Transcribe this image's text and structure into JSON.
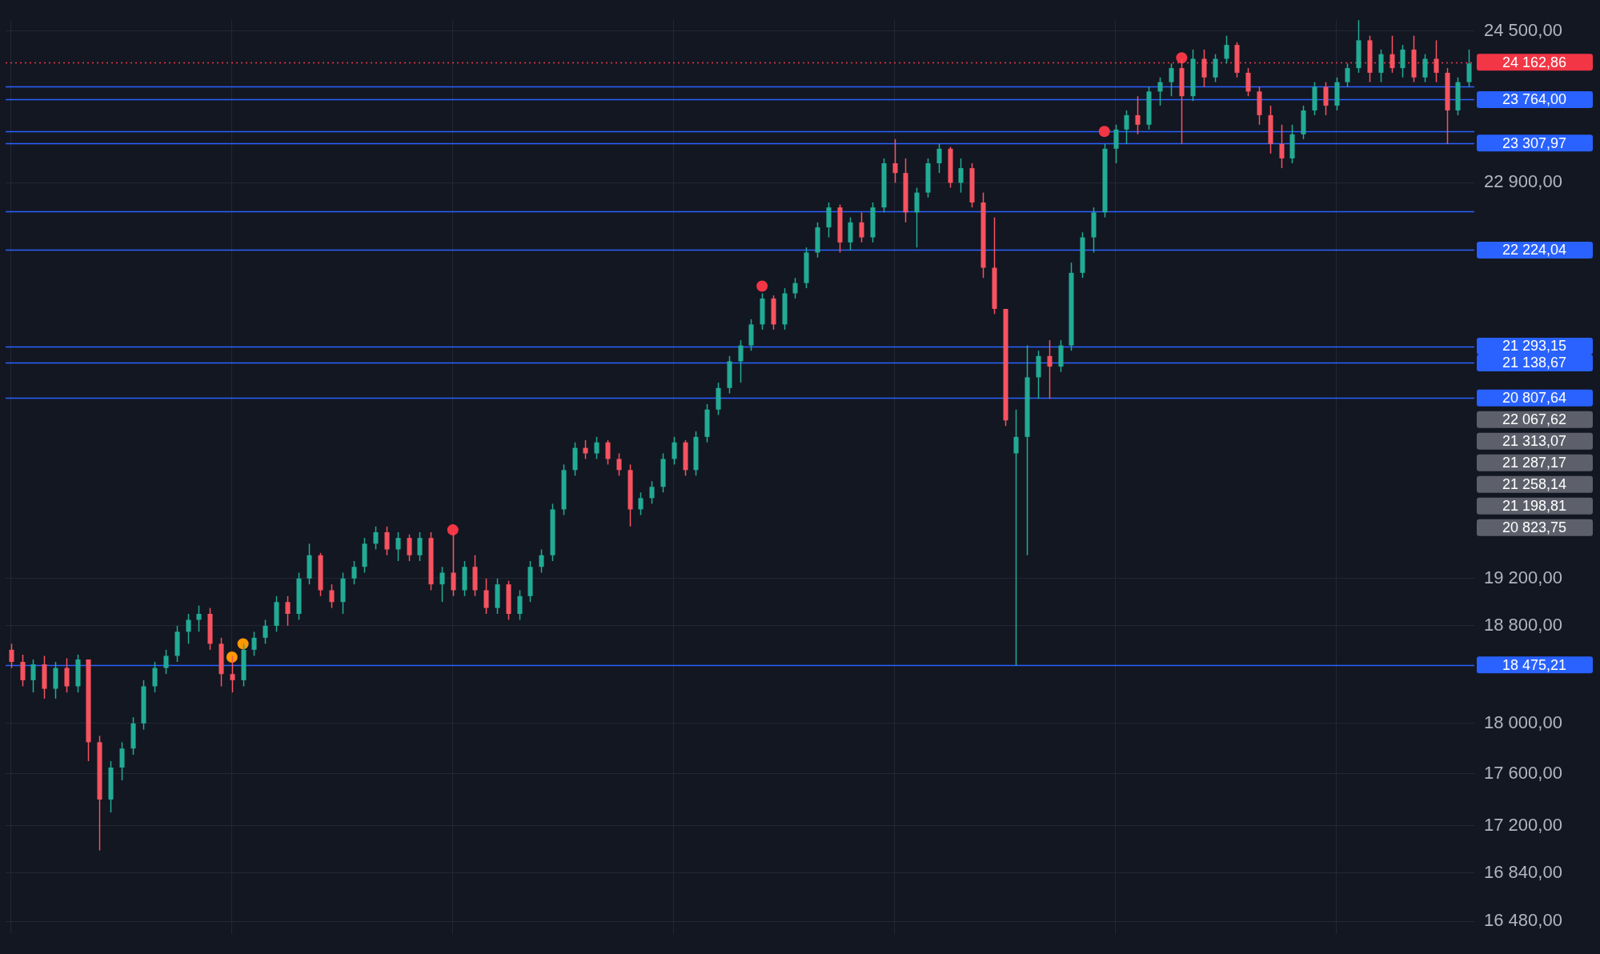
{
  "chart_data": {
    "type": "candlestick",
    "log": true,
    "grid": true,
    "tick_labels": "y",
    "marker": "circle",
    "categories": [
      null,
      null,
      null,
      null,
      null,
      null,
      null,
      null,
      null,
      null,
      null,
      null,
      null,
      null,
      null,
      null,
      null,
      null,
      null,
      null,
      null,
      null,
      null,
      null,
      null,
      null,
      null,
      null,
      null,
      null,
      null,
      null,
      null,
      null,
      null,
      null,
      null,
      null,
      null,
      null,
      null,
      null,
      null,
      null,
      null,
      null,
      null,
      null,
      null,
      null,
      null,
      null,
      null,
      null,
      null,
      null,
      null,
      null,
      null,
      null,
      null,
      null,
      null,
      null,
      null,
      null,
      null,
      null,
      null,
      null,
      null,
      null,
      null,
      null,
      null,
      null,
      null,
      null,
      null,
      null,
      null,
      null,
      null,
      null,
      null,
      null,
      null,
      null,
      null,
      null,
      null,
      null,
      null,
      null,
      null,
      null,
      null,
      null,
      null,
      null,
      null,
      null,
      null,
      null,
      null,
      null,
      null,
      null,
      null,
      null,
      null,
      null,
      null,
      null,
      null,
      null,
      null,
      null,
      null,
      null,
      null,
      null,
      null,
      null,
      null,
      null,
      null,
      null,
      null,
      null,
      null,
      null,
      null
    ],
    "ohlc": [
      [
        18600,
        18650,
        18450,
        18500
      ],
      [
        18500,
        18560,
        18300,
        18350
      ],
      [
        18350,
        18520,
        18250,
        18480
      ],
      [
        18480,
        18550,
        18200,
        18280
      ],
      [
        18280,
        18500,
        18200,
        18450
      ],
      [
        18450,
        18530,
        18250,
        18300
      ],
      [
        18300,
        18560,
        18250,
        18520
      ],
      [
        18520,
        18520,
        17700,
        17850
      ],
      [
        17850,
        17900,
        17010,
        17400
      ],
      [
        17400,
        17700,
        17300,
        17650
      ],
      [
        17650,
        17850,
        17550,
        17800
      ],
      [
        17800,
        18050,
        17750,
        18000
      ],
      [
        18000,
        18350,
        17950,
        18300
      ],
      [
        18300,
        18500,
        18250,
        18450
      ],
      [
        18450,
        18600,
        18400,
        18550
      ],
      [
        18550,
        18800,
        18500,
        18750
      ],
      [
        18750,
        18900,
        18650,
        18850
      ],
      [
        18850,
        18970,
        18750,
        18900
      ],
      [
        18900,
        18950,
        18600,
        18650
      ],
      [
        18650,
        18700,
        18300,
        18400
      ],
      [
        18400,
        18550,
        18250,
        18350
      ],
      [
        18350,
        18650,
        18300,
        18600
      ],
      [
        18600,
        18750,
        18550,
        18700
      ],
      [
        18700,
        18850,
        18650,
        18800
      ],
      [
        18800,
        19050,
        18750,
        19000
      ],
      [
        19000,
        19050,
        18800,
        18900
      ],
      [
        18900,
        19250,
        18850,
        19200
      ],
      [
        19200,
        19500,
        19150,
        19400
      ],
      [
        19400,
        19420,
        19050,
        19100
      ],
      [
        19100,
        19150,
        18950,
        19000
      ],
      [
        19000,
        19250,
        18900,
        19200
      ],
      [
        19200,
        19350,
        19150,
        19300
      ],
      [
        19300,
        19550,
        19250,
        19500
      ],
      [
        19500,
        19650,
        19450,
        19600
      ],
      [
        19600,
        19650,
        19400,
        19450
      ],
      [
        19450,
        19600,
        19350,
        19550
      ],
      [
        19550,
        19580,
        19350,
        19400
      ],
      [
        19400,
        19600,
        19350,
        19550
      ],
      [
        19550,
        19600,
        19100,
        19150
      ],
      [
        19150,
        19300,
        19000,
        19250
      ],
      [
        19250,
        19600,
        19050,
        19100
      ],
      [
        19100,
        19350,
        19050,
        19300
      ],
      [
        19300,
        19400,
        19050,
        19100
      ],
      [
        19100,
        19200,
        18900,
        18950
      ],
      [
        18950,
        19200,
        18900,
        19150
      ],
      [
        19150,
        19180,
        18850,
        18900
      ],
      [
        18900,
        19100,
        18850,
        19050
      ],
      [
        19050,
        19350,
        19000,
        19300
      ],
      [
        19300,
        19450,
        19250,
        19400
      ],
      [
        19400,
        19850,
        19350,
        19800
      ],
      [
        19800,
        20200,
        19750,
        20150
      ],
      [
        20150,
        20400,
        20100,
        20350
      ],
      [
        20350,
        20420,
        20250,
        20300
      ],
      [
        20300,
        20450,
        20250,
        20400
      ],
      [
        20400,
        20420,
        20200,
        20250
      ],
      [
        20250,
        20300,
        20100,
        20150
      ],
      [
        20150,
        20200,
        19650,
        19800
      ],
      [
        19800,
        19950,
        19750,
        19900
      ],
      [
        19900,
        20050,
        19850,
        20000
      ],
      [
        20000,
        20300,
        19950,
        20250
      ],
      [
        20250,
        20450,
        20200,
        20400
      ],
      [
        20400,
        20420,
        20100,
        20150
      ],
      [
        20150,
        20500,
        20100,
        20450
      ],
      [
        20450,
        20750,
        20400,
        20700
      ],
      [
        20700,
        20950,
        20650,
        20900
      ],
      [
        20900,
        21200,
        20850,
        21150
      ],
      [
        21150,
        21350,
        20950,
        21300
      ],
      [
        21300,
        21550,
        21250,
        21500
      ],
      [
        21500,
        21800,
        21450,
        21750
      ],
      [
        21750,
        21780,
        21450,
        21500
      ],
      [
        21500,
        21850,
        21450,
        21800
      ],
      [
        21800,
        21950,
        21750,
        21900
      ],
      [
        21900,
        22250,
        21850,
        22200
      ],
      [
        22200,
        22500,
        22150,
        22450
      ],
      [
        22450,
        22700,
        22350,
        22650
      ],
      [
        22650,
        22680,
        22200,
        22300
      ],
      [
        22300,
        22550,
        22220,
        22500
      ],
      [
        22500,
        22600,
        22300,
        22350
      ],
      [
        22350,
        22700,
        22300,
        22650
      ],
      [
        22650,
        23150,
        22600,
        23100
      ],
      [
        23100,
        23350,
        22900,
        23000
      ],
      [
        23000,
        23150,
        22500,
        22600
      ],
      [
        22600,
        22850,
        22250,
        22800
      ],
      [
        22800,
        23150,
        22750,
        23100
      ],
      [
        23100,
        23300,
        23000,
        23250
      ],
      [
        23250,
        23270,
        22850,
        22900
      ],
      [
        22900,
        23150,
        22800,
        23050
      ],
      [
        23050,
        23100,
        22650,
        22700
      ],
      [
        22700,
        22800,
        21950,
        22050
      ],
      [
        22050,
        22550,
        21600,
        21650
      ],
      [
        21650,
        21650,
        20550,
        20600
      ],
      [
        20300,
        20700,
        18470,
        20450
      ],
      [
        20450,
        21300,
        19400,
        21000
      ],
      [
        21000,
        21250,
        20800,
        21200
      ],
      [
        21200,
        21350,
        20800,
        21100
      ],
      [
        21100,
        21350,
        21050,
        21300
      ],
      [
        21300,
        22100,
        21250,
        22000
      ],
      [
        22000,
        22400,
        21950,
        22350
      ],
      [
        22350,
        22650,
        22200,
        22600
      ],
      [
        22600,
        23300,
        22550,
        23250
      ],
      [
        23250,
        23500,
        23100,
        23450
      ],
      [
        23450,
        23650,
        23300,
        23600
      ],
      [
        23600,
        23800,
        23400,
        23500
      ],
      [
        23500,
        23900,
        23450,
        23850
      ],
      [
        23850,
        24000,
        23700,
        23950
      ],
      [
        23950,
        24150,
        23800,
        24100
      ],
      [
        24100,
        24200,
        23300,
        23800
      ],
      [
        23800,
        24300,
        23750,
        24200
      ],
      [
        24200,
        24300,
        23900,
        24000
      ],
      [
        24000,
        24250,
        23950,
        24200
      ],
      [
        24200,
        24450,
        24150,
        24350
      ],
      [
        24350,
        24380,
        24000,
        24050
      ],
      [
        24050,
        24100,
        23800,
        23850
      ],
      [
        23850,
        23900,
        23500,
        23600
      ],
      [
        23600,
        23700,
        23200,
        23300
      ],
      [
        23300,
        23500,
        23050,
        23150
      ],
      [
        23150,
        23500,
        23100,
        23400
      ],
      [
        23400,
        23700,
        23350,
        23650
      ],
      [
        23650,
        23950,
        23600,
        23900
      ],
      [
        23900,
        23950,
        23600,
        23700
      ],
      [
        23700,
        24000,
        23650,
        23950
      ],
      [
        23950,
        24150,
        23900,
        24100
      ],
      [
        24100,
        24620,
        24050,
        24400
      ],
      [
        24400,
        24450,
        23950,
        24050
      ],
      [
        24050,
        24300,
        23950,
        24250
      ],
      [
        24250,
        24450,
        24050,
        24100
      ],
      [
        24100,
        24350,
        24000,
        24300
      ],
      [
        24300,
        24450,
        23950,
        24000
      ],
      [
        24000,
        24250,
        23950,
        24200
      ],
      [
        24200,
        24400,
        23950,
        24050
      ],
      [
        24050,
        24100,
        23300,
        23650
      ],
      [
        23650,
        24000,
        23600,
        23950
      ],
      [
        23950,
        24300,
        23900,
        24150
      ]
    ],
    "colors": [
      "#f7525f",
      "#f7525f",
      "#22ab94",
      "#f7525f",
      "#22ab94",
      "#f7525f",
      "#22ab94",
      "#f7525f",
      "#f7525f",
      "#22ab94",
      "#22ab94",
      "#22ab94",
      "#22ab94",
      "#22ab94",
      "#22ab94",
      "#22ab94",
      "#22ab94",
      "#22ab94",
      "#f7525f",
      "#f7525f",
      "#f7525f",
      "#22ab94",
      "#22ab94",
      "#22ab94",
      "#22ab94",
      "#f7525f",
      "#22ab94",
      "#22ab94",
      "#f7525f",
      "#f7525f",
      "#22ab94",
      "#22ab94",
      "#22ab94",
      "#22ab94",
      "#f7525f",
      "#22ab94",
      "#f7525f",
      "#22ab94",
      "#f7525f",
      "#22ab94",
      "#f7525f",
      "#22ab94",
      "#f7525f",
      "#f7525f",
      "#22ab94",
      "#f7525f",
      "#22ab94",
      "#22ab94",
      "#22ab94",
      "#22ab94",
      "#22ab94",
      "#22ab94",
      "#f7525f",
      "#22ab94",
      "#f7525f",
      "#f7525f",
      "#f7525f",
      "#22ab94",
      "#22ab94",
      "#22ab94",
      "#22ab94",
      "#f7525f",
      "#22ab94",
      "#22ab94",
      "#22ab94",
      "#22ab94",
      "#22ab94",
      "#22ab94",
      "#22ab94",
      "#f7525f",
      "#22ab94",
      "#22ab94",
      "#22ab94",
      "#22ab94",
      "#22ab94",
      "#f7525f",
      "#22ab94",
      "#f7525f",
      "#22ab94",
      "#22ab94",
      "#f7525f",
      "#f7525f",
      "#22ab94",
      "#22ab94",
      "#22ab94",
      "#f7525f",
      "#22ab94",
      "#f7525f",
      "#f7525f",
      "#f7525f",
      "#f7525f",
      "#22ab94",
      "#22ab94",
      "#22ab94",
      "#f7525f",
      "#22ab94",
      "#22ab94",
      "#22ab94",
      "#22ab94",
      "#22ab94",
      "#22ab94",
      "#22ab94",
      "#f7525f",
      "#22ab94",
      "#22ab94",
      "#22ab94",
      "#f7525f",
      "#22ab94",
      "#f7525f",
      "#22ab94",
      "#22ab94",
      "#f7525f",
      "#f7525f",
      "#f7525f",
      "#f7525f",
      "#f7525f",
      "#22ab94",
      "#22ab94",
      "#22ab94",
      "#f7525f",
      "#22ab94",
      "#22ab94",
      "#22ab94",
      "#f7525f",
      "#22ab94",
      "#f7525f",
      "#22ab94",
      "#f7525f",
      "#22ab94",
      "#f7525f",
      "#f7525f",
      "#22ab94",
      "#22ab94"
    ],
    "series": [
      {
        "type": "scatter",
        "color": "#f23645",
        "values": [
          null,
          null,
          null,
          null,
          null,
          null,
          null,
          null,
          null,
          null,
          null,
          null,
          null,
          null,
          null,
          null,
          null,
          null,
          null,
          null,
          null,
          null,
          null,
          null,
          null,
          null,
          null,
          null,
          null,
          null,
          null,
          null,
          null,
          null,
          null,
          null,
          null,
          null,
          null,
          null,
          19620,
          null,
          null,
          null,
          null,
          null,
          null,
          null,
          null,
          null,
          null,
          null,
          null,
          null,
          null,
          null,
          null,
          null,
          null,
          null,
          null,
          null,
          null,
          null,
          null,
          null,
          null,
          null,
          21870,
          null,
          null,
          null,
          null,
          null,
          null,
          null,
          null,
          null,
          null,
          null,
          null,
          null,
          null,
          null,
          null,
          null,
          null,
          null,
          null,
          null,
          null,
          null,
          null,
          null,
          null,
          null,
          null,
          null,
          null,
          23430,
          null,
          null,
          null,
          null,
          null,
          null,
          24210,
          null,
          null,
          null,
          null,
          null,
          null,
          null,
          null,
          null,
          null,
          null,
          null,
          null,
          null,
          null,
          null,
          null,
          null,
          null,
          null,
          null,
          null,
          null,
          null,
          null,
          null
        ]
      },
      {
        "type": "scatter",
        "color": "#ff9800",
        "values": [
          null,
          null,
          null,
          null,
          null,
          null,
          null,
          null,
          null,
          null,
          null,
          null,
          null,
          null,
          null,
          null,
          null,
          null,
          null,
          null,
          18540,
          18650,
          null,
          null,
          null,
          null,
          null,
          null,
          null,
          null,
          null,
          null,
          null,
          null,
          null,
          null,
          null,
          null,
          null,
          null,
          null,
          null,
          null,
          null,
          null,
          null,
          null,
          null,
          null,
          null,
          null,
          null,
          null,
          null,
          null,
          null,
          null,
          null,
          null,
          null,
          null,
          null,
          null,
          null,
          null,
          null,
          null,
          null,
          null,
          null,
          null,
          null,
          null,
          null,
          null,
          null,
          null,
          null,
          null,
          null,
          null,
          null,
          null,
          null,
          null,
          null,
          null,
          null,
          null,
          null,
          null,
          null,
          null,
          null,
          null,
          null,
          null,
          null,
          null,
          null,
          null,
          null,
          null,
          null,
          null,
          null,
          null,
          null,
          null,
          null,
          null,
          null,
          null,
          null,
          null,
          null,
          null,
          null,
          null,
          null,
          null,
          null,
          null,
          null,
          null,
          null,
          null,
          null,
          null,
          null,
          null,
          null,
          null
        ]
      }
    ],
    "ylim": [
      16390,
      24620
    ],
    "yticks": [
      {
        "value": 24500,
        "label": "24 500,00"
      },
      {
        "value": 22900,
        "label": "22 900,00"
      },
      {
        "value": 19200,
        "label": "19 200,00"
      },
      {
        "value": 18800,
        "label": "18 800,00"
      },
      {
        "value": 18000,
        "label": "18 000,00"
      },
      {
        "value": 17600,
        "label": "17 600,00"
      },
      {
        "value": 17200,
        "label": "17 200,00"
      },
      {
        "value": 16840,
        "label": "16 840,00"
      },
      {
        "value": 16480,
        "label": "16 480,00"
      }
    ],
    "ref_lines": [
      {
        "axis": "y",
        "value": 24162.86,
        "label": "24 162,86",
        "color": "#f23645",
        "line_style": "dotted"
      },
      {
        "axis": "y",
        "value": 23764.0,
        "label": "23 764,00",
        "color": "#2962ff"
      },
      {
        "axis": "y",
        "value": 23307.97,
        "label": "23 307,97",
        "color": "#2962ff"
      },
      {
        "axis": "y",
        "value": 22224.04,
        "label": "22 224,04",
        "color": "#2962ff"
      },
      {
        "axis": "y",
        "value": 21293.15,
        "label": "21 293,15",
        "color": "#2962ff"
      },
      {
        "axis": "y",
        "value": 21138.67,
        "label": "21 138,67",
        "color": "#2962ff"
      },
      {
        "axis": "y",
        "value": 20807.64,
        "label": "20 807,64",
        "color": "#2962ff"
      },
      {
        "axis": "y",
        "value": 18475.21,
        "label": "18 475,21",
        "color": "#2962ff"
      },
      {
        "axis": "y",
        "value": 23900,
        "color": "#2962ff"
      },
      {
        "axis": "y",
        "value": 23430,
        "color": "#2962ff"
      },
      {
        "axis": "y",
        "value": 22610,
        "color": "#2962ff"
      }
    ],
    "annotations": [
      "22 067,62",
      "21 313,07",
      "21 287,17",
      "21 258,14",
      "21 198,81",
      "20 823,75"
    ]
  }
}
